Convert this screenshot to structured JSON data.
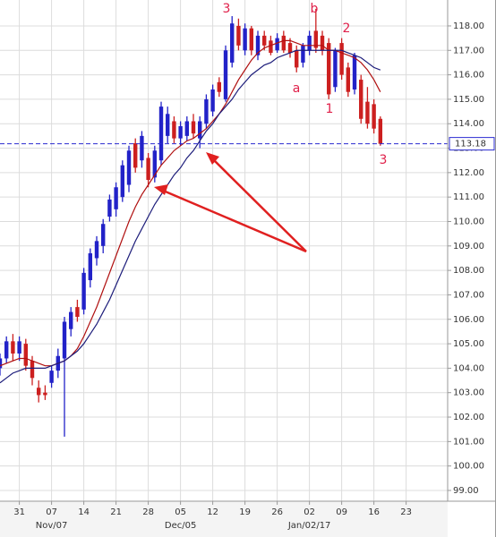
{
  "chart_data": {
    "type": "candlestick",
    "x": [
      0,
      1,
      2,
      3,
      4,
      5,
      6,
      7,
      8,
      9,
      10,
      11,
      12,
      13,
      14,
      15,
      16,
      17,
      18,
      19,
      20,
      21,
      22,
      23,
      24,
      25,
      26,
      27,
      28,
      29,
      30,
      31,
      32,
      33,
      34,
      35,
      36,
      37,
      38,
      39,
      40,
      41,
      42,
      43,
      44,
      45,
      46,
      47,
      48,
      49,
      50,
      51,
      52,
      53,
      54,
      55,
      56,
      57,
      58,
      59
    ],
    "open": [
      104.0,
      104.4,
      105.1,
      104.6,
      105.0,
      104.3,
      103.2,
      103.0,
      103.4,
      103.9,
      104.4,
      105.6,
      106.5,
      106.4,
      107.6,
      108.5,
      109.0,
      110.2,
      110.5,
      111.0,
      111.5,
      113.2,
      112.5,
      112.6,
      111.8,
      112.5,
      113.5,
      114.1,
      113.4,
      113.5,
      114.1,
      113.4,
      114.0,
      114.5,
      115.7,
      115.0,
      116.5,
      118.0,
      117.0,
      117.9,
      116.8,
      117.6,
      117.4,
      117.0,
      117.6,
      117.3,
      117.0,
      116.5,
      117.0,
      117.8,
      117.6,
      117.3,
      115.5,
      117.3,
      116.3,
      115.4,
      115.8,
      114.9,
      114.8,
      114.2
    ],
    "high": [
      104.6,
      105.3,
      105.4,
      105.3,
      105.2,
      104.5,
      103.5,
      103.3,
      104.1,
      104.8,
      106.1,
      106.5,
      106.8,
      108.1,
      108.9,
      109.4,
      110.1,
      111.1,
      111.6,
      112.5,
      113.1,
      113.4,
      113.7,
      112.8,
      113.1,
      114.9,
      114.7,
      114.3,
      114.1,
      114.3,
      114.4,
      114.3,
      115.2,
      115.6,
      115.9,
      117.2,
      118.4,
      118.3,
      118.1,
      118.0,
      117.8,
      117.8,
      117.6,
      117.7,
      117.8,
      117.5,
      117.2,
      117.3,
      117.8,
      118.7,
      117.8,
      117.5,
      117.1,
      117.5,
      116.5,
      116.9,
      116.0,
      115.5,
      115.0,
      114.3
    ],
    "low": [
      103.7,
      104.2,
      104.3,
      104.3,
      103.9,
      103.3,
      102.6,
      102.7,
      103.2,
      103.6,
      101.2,
      105.3,
      105.9,
      106.2,
      107.3,
      108.2,
      108.7,
      110.0,
      110.2,
      110.8,
      111.2,
      112.0,
      112.2,
      111.4,
      111.6,
      112.3,
      113.2,
      113.2,
      113.1,
      113.3,
      113.4,
      113.0,
      113.8,
      114.3,
      115.1,
      114.9,
      116.3,
      117.0,
      116.8,
      116.8,
      116.6,
      117.0,
      116.8,
      116.9,
      116.9,
      116.7,
      116.1,
      116.3,
      116.8,
      116.9,
      116.8,
      115.0,
      115.3,
      115.8,
      115.1,
      115.2,
      114.0,
      113.8,
      113.6,
      113.1
    ],
    "close": [
      104.4,
      105.1,
      104.6,
      105.1,
      104.1,
      103.6,
      102.9,
      102.9,
      103.9,
      104.5,
      105.9,
      106.3,
      106.1,
      107.9,
      108.7,
      109.2,
      109.9,
      110.9,
      111.4,
      112.3,
      112.9,
      112.2,
      113.5,
      111.7,
      112.9,
      114.7,
      114.4,
      113.4,
      113.9,
      114.1,
      113.6,
      114.1,
      115.0,
      115.4,
      115.3,
      117.0,
      118.1,
      117.2,
      117.9,
      117.0,
      117.6,
      117.2,
      116.9,
      117.5,
      117.0,
      116.9,
      116.3,
      117.2,
      117.6,
      117.1,
      117.0,
      115.2,
      117.0,
      116.0,
      115.3,
      116.8,
      114.2,
      114.0,
      113.8,
      113.18
    ],
    "up_color": "#2222c8",
    "down_color": "#cc1f1f",
    "lines": [
      {
        "color": "#b01010",
        "values": [
          104.1,
          104.2,
          104.3,
          104.4,
          104.4,
          104.3,
          104.2,
          104.1,
          104.1,
          104.2,
          104.3,
          104.5,
          104.8,
          105.3,
          105.9,
          106.5,
          107.2,
          107.9,
          108.6,
          109.3,
          110.0,
          110.6,
          111.1,
          111.5,
          111.9,
          112.3,
          112.6,
          112.9,
          113.1,
          113.3,
          113.4,
          113.6,
          113.8,
          114.1,
          114.4,
          114.8,
          115.3,
          115.8,
          116.2,
          116.6,
          116.9,
          117.1,
          117.2,
          117.3,
          117.4,
          117.4,
          117.3,
          117.2,
          117.2,
          117.2,
          117.2,
          117.0,
          117.0,
          116.9,
          116.8,
          116.7,
          116.5,
          116.2,
          115.8,
          115.3
        ]
      },
      {
        "color": "#1c1c7a",
        "values": [
          103.4,
          103.6,
          103.8,
          103.9,
          104.0,
          104.0,
          104.0,
          104.0,
          104.1,
          104.2,
          104.3,
          104.5,
          104.7,
          105.0,
          105.4,
          105.8,
          106.3,
          106.8,
          107.4,
          108.0,
          108.6,
          109.2,
          109.7,
          110.2,
          110.7,
          111.1,
          111.5,
          111.9,
          112.2,
          112.6,
          112.9,
          113.3,
          113.7,
          114.0,
          114.4,
          114.7,
          115.0,
          115.4,
          115.7,
          116.0,
          116.2,
          116.4,
          116.5,
          116.7,
          116.8,
          116.9,
          117.0,
          117.0,
          117.0,
          117.0,
          117.0,
          117.0,
          117.0,
          117.0,
          116.9,
          116.8,
          116.7,
          116.5,
          116.3,
          116.2
        ]
      }
    ],
    "last_price": 113.18,
    "annotations": [
      "3",
      "b",
      "2",
      "a",
      "1",
      "3"
    ],
    "xlim": [
      0,
      69.44
    ],
    "ylim": [
      98.56,
      119.06
    ],
    "yticks": [
      {
        "value": 99,
        "label": "99.00"
      },
      {
        "value": 100,
        "label": "100.00"
      },
      {
        "value": 101,
        "label": "101.00"
      },
      {
        "value": 102,
        "label": "102.00"
      },
      {
        "value": 103,
        "label": "103.00"
      },
      {
        "value": 104,
        "label": "104.00"
      },
      {
        "value": 105,
        "label": "105.00"
      },
      {
        "value": 106,
        "label": "106.00"
      },
      {
        "value": 107,
        "label": "107.00"
      },
      {
        "value": 108,
        "label": "108.00"
      },
      {
        "value": 109,
        "label": "109.00"
      },
      {
        "value": 110,
        "label": "110.00"
      },
      {
        "value": 111,
        "label": "111.00"
      },
      {
        "value": 112,
        "label": "112.00"
      },
      {
        "value": 113,
        "label": "113.00"
      },
      {
        "value": 114,
        "label": "114.00"
      },
      {
        "value": 115,
        "label": "115.00"
      },
      {
        "value": 116,
        "label": "116.00"
      },
      {
        "value": 117,
        "label": "117.00"
      },
      {
        "value": 118,
        "label": "118.00"
      }
    ],
    "xticks": [
      {
        "value": 3,
        "label": "31"
      },
      {
        "value": 8,
        "label": "07"
      },
      {
        "value": 13,
        "label": "14"
      },
      {
        "value": 18,
        "label": "21"
      },
      {
        "value": 23,
        "label": "28"
      },
      {
        "value": 28,
        "label": "05"
      },
      {
        "value": 33,
        "label": "12"
      },
      {
        "value": 38,
        "label": "19"
      },
      {
        "value": 43,
        "label": "26"
      },
      {
        "value": 48,
        "label": "02"
      },
      {
        "value": 53,
        "label": "09"
      },
      {
        "value": 58,
        "label": "16"
      },
      {
        "value": 63,
        "label": "23"
      }
    ],
    "month_ticks": [
      {
        "value": 8,
        "label": "Nov/07"
      },
      {
        "value": 28,
        "label": "Dec/05"
      },
      {
        "value": 48,
        "label": "Jan/02/17"
      }
    ],
    "grid": true
  }
}
